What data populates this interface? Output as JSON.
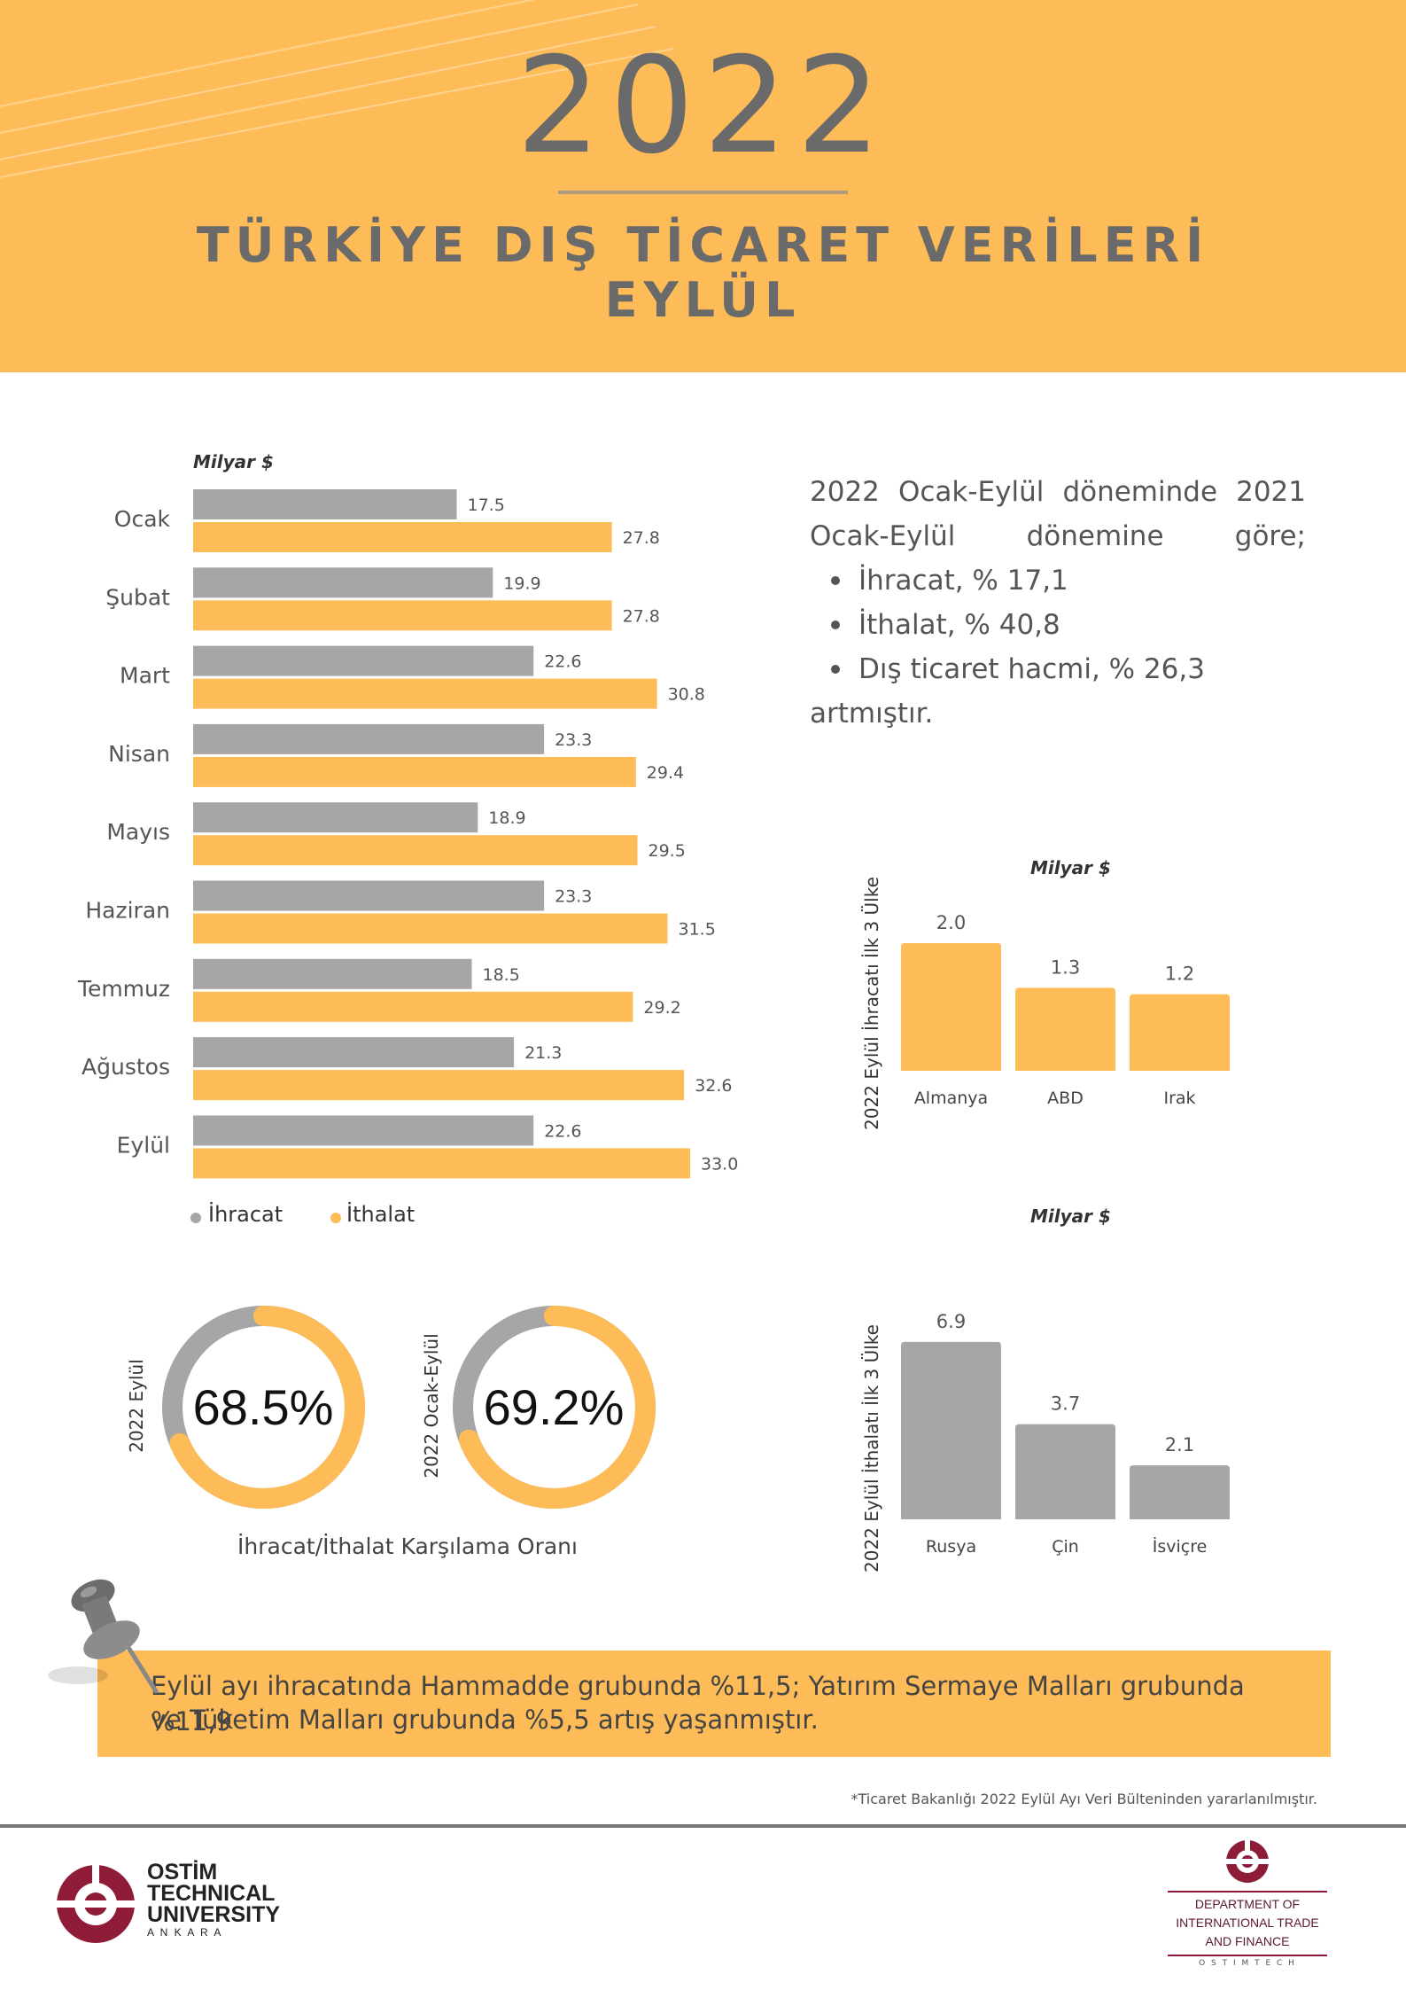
{
  "header": {
    "year": "2022",
    "title_line1": "TÜRKİYE DIŞ TİCARET VERİLERİ",
    "title_line2": "EYLÜL"
  },
  "colors": {
    "accent": "#fdbc57",
    "gray": "#a6a6a6",
    "text": "#6a6a6a"
  },
  "monthly_chart_unit": "Milyar $",
  "info": {
    "intro": "2022 Ocak-Eylül döneminde 2021 Ocak-Eylül dönemine göre;",
    "bullets": [
      "İhracat, % 17,1",
      "İthalat, % 40,8",
      "Dış ticaret hacmi, % 26,3"
    ],
    "outro": "artmıştır."
  },
  "donuts": {
    "caption": "İhracat/İthalat Karşılama Oranı",
    "items": [
      {
        "label": "2022 Eylül",
        "value_text": "68.5%",
        "value": 68.5
      },
      {
        "label": "2022 Ocak-Eylül",
        "value_text": "69.2%",
        "value": 69.2
      }
    ]
  },
  "note": {
    "line1": "Eylül ayı ihracatında Hammadde grubunda %11,5; Yatırım Sermaye Malları grubunda %11,9",
    "line2": "ve Tüketim Malları grubunda %5,5 artış yaşanmıştır."
  },
  "source": "*Ticaret Bakanlığı 2022 Eylül Ayı Veri Bülteninden yararlanılmıştır.",
  "footer": {
    "left_logo": [
      "OSTİM",
      "TECHNICAL",
      "UNIVERSITY",
      "A N K A R A"
    ],
    "right_logo": [
      "DEPARTMENT OF",
      "INTERNATIONAL TRADE",
      "AND FINANCE",
      "O S T I M T E C H"
    ]
  },
  "chart_data": [
    {
      "type": "bar",
      "orientation": "horizontal",
      "ylabel": "Milyar $",
      "categories": [
        "Ocak",
        "Şubat",
        "Mart",
        "Nisan",
        "Mayıs",
        "Haziran",
        "Temmuz",
        "Ağustos",
        "Eylül"
      ],
      "series": [
        {
          "name": "İhracat",
          "color": "#a6a6a6",
          "values": [
            17.5,
            19.9,
            22.6,
            23.3,
            18.9,
            23.3,
            18.5,
            21.3,
            22.6
          ],
          "labels": [
            "17.5",
            "19.9",
            "22.6",
            "23.3",
            "18.9",
            "23.3",
            "18.5",
            "21.3",
            "22.6"
          ]
        },
        {
          "name": "İthalat",
          "color": "#fdbc57",
          "values": [
            27.8,
            27.8,
            30.8,
            29.4,
            29.5,
            31.5,
            29.2,
            32.6,
            33.0
          ],
          "labels": [
            "27.8",
            "27.8",
            "30.8",
            "29.4",
            "29.5",
            "31.5",
            "29.2",
            "32.6",
            "33.0"
          ]
        }
      ],
      "legend": "bottom-left"
    },
    {
      "type": "bar",
      "title": "Milyar $",
      "ylabel": "2022 Eylül İhracatı İlk 3 Ülke",
      "categories": [
        "Almanya",
        "ABD",
        "Irak"
      ],
      "values": [
        2.0,
        1.3,
        1.2
      ],
      "labels": [
        "2.0",
        "1.3",
        "1.2"
      ],
      "color": "#fdbc57"
    },
    {
      "type": "bar",
      "title": "Milyar $",
      "ylabel": "2022 Eylül İthalatı İlk 3 Ülke",
      "categories": [
        "Rusya",
        "Çin",
        "İsviçre"
      ],
      "values": [
        6.9,
        3.7,
        2.1
      ],
      "labels": [
        "6.9",
        "3.7",
        "2.1"
      ],
      "color": "#a6a6a6"
    }
  ]
}
